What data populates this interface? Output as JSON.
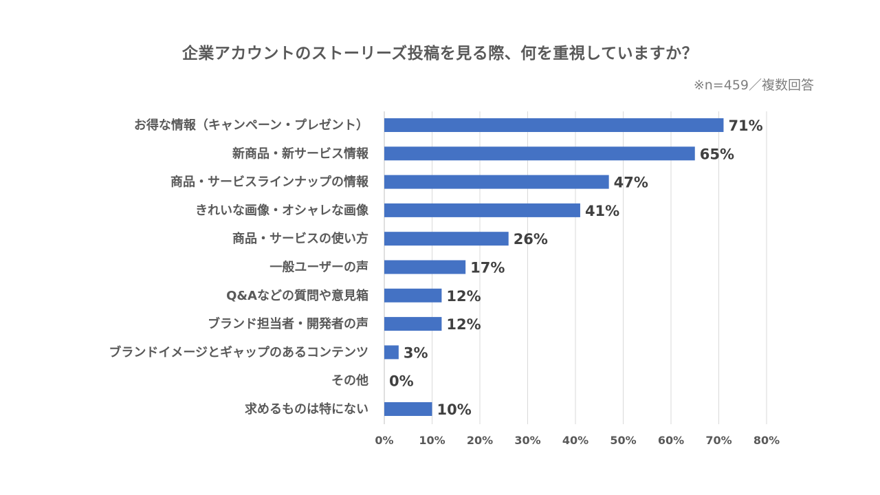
{
  "chart_data": {
    "type": "bar",
    "orientation": "horizontal",
    "title": "企業アカウントのストーリーズ投稿を見る際、何を重視していますか？",
    "subtitle": "※n=459／複数回答",
    "categories": [
      "お得な情報（キャンペーン・プレゼント）",
      "新商品・新サービス情報",
      "商品・サービスラインナップの情報",
      "きれいな画像・オシャレな画像",
      "商品・サービスの使い方",
      "一般ユーザーの声",
      "Q&Aなどの質問や意見箱",
      "ブランド担当者・開発者の声",
      "ブランドイメージとギャップのあるコンテンツ",
      "その他",
      "求めるものは特にない"
    ],
    "values": [
      71,
      65,
      47,
      41,
      26,
      17,
      12,
      12,
      3,
      0,
      10
    ],
    "data_labels": [
      "71%",
      "65%",
      "47%",
      "41%",
      "26%",
      "17%",
      "12%",
      "12%",
      "3%",
      "0%",
      "10%"
    ],
    "xlim": [
      0,
      80
    ],
    "x_ticks": [
      "0%",
      "10%",
      "20%",
      "30%",
      "40%",
      "50%",
      "60%",
      "70%",
      "80%"
    ],
    "x_tick_values": [
      0,
      10,
      20,
      30,
      40,
      50,
      60,
      70,
      80
    ],
    "grid": true,
    "legend": "none",
    "bar_color": "#4472c4"
  }
}
